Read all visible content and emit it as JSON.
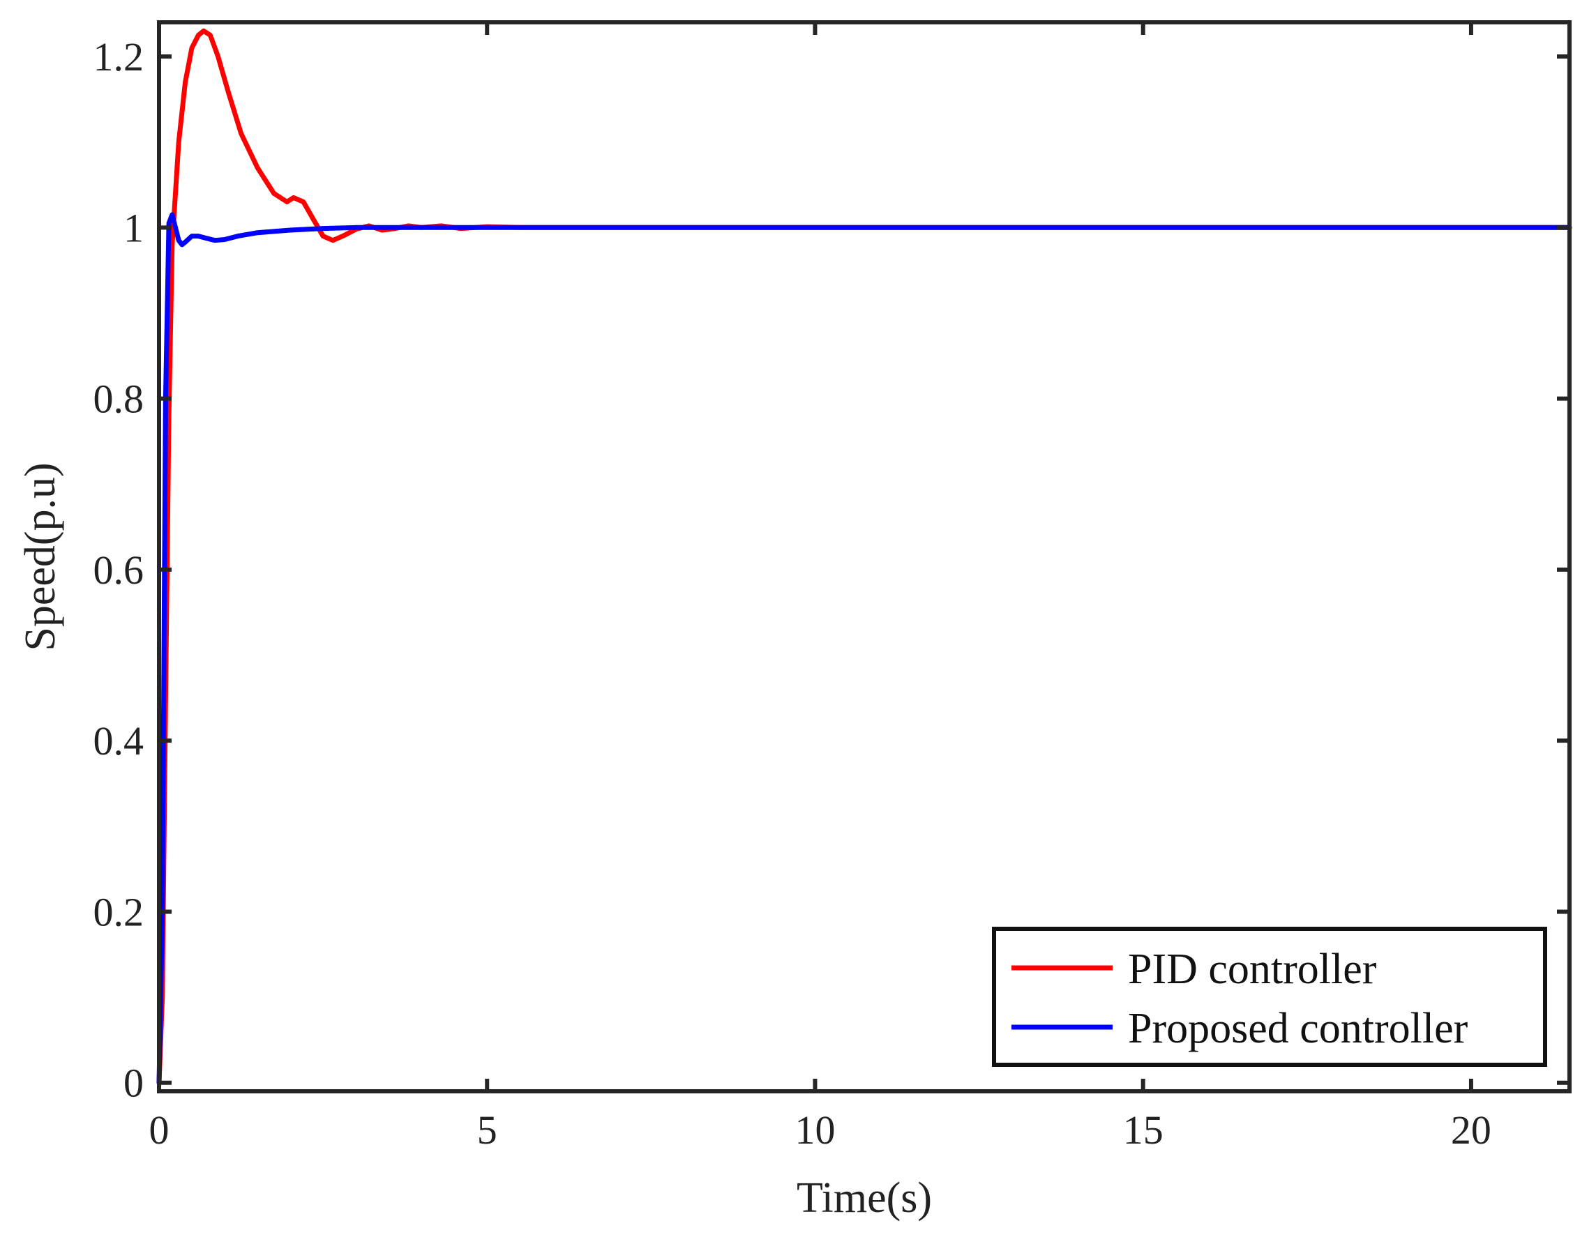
{
  "chart_data": {
    "type": "line",
    "xlabel": "Time(s)",
    "ylabel": "Speed(p.u)",
    "xlim": [
      0,
      21.5
    ],
    "ylim": [
      -0.01,
      1.24
    ],
    "xticks": [
      0,
      5,
      10,
      15,
      20
    ],
    "xtick_labels": [
      "0",
      "5",
      "10",
      "15",
      "20"
    ],
    "yticks": [
      0,
      0.2,
      0.4,
      0.6,
      0.8,
      1,
      1.2
    ],
    "ytick_labels": [
      "0",
      "0.2",
      "0.4",
      "0.6",
      "0.8",
      "1",
      "1.2"
    ],
    "grid": false,
    "legend": {
      "position": "bottom-right"
    },
    "series": [
      {
        "name": "PID controller",
        "color": "#ff0000",
        "x": [
          0,
          0.05,
          0.1,
          0.15,
          0.2,
          0.3,
          0.4,
          0.5,
          0.6,
          0.68,
          0.78,
          0.9,
          1.05,
          1.25,
          1.5,
          1.75,
          1.95,
          2.05,
          2.2,
          2.35,
          2.5,
          2.65,
          2.8,
          3.0,
          3.2,
          3.4,
          3.6,
          3.8,
          4.0,
          4.3,
          4.6,
          5.0,
          5.5,
          6.0,
          7.0,
          8.0,
          10.0,
          15.0,
          21.5
        ],
        "y": [
          0,
          0.1,
          0.45,
          0.78,
          0.98,
          1.1,
          1.17,
          1.21,
          1.225,
          1.23,
          1.225,
          1.2,
          1.16,
          1.11,
          1.07,
          1.04,
          1.03,
          1.035,
          1.03,
          1.01,
          0.99,
          0.985,
          0.99,
          0.998,
          1.002,
          0.997,
          0.999,
          1.002,
          1.0,
          1.002,
          0.999,
          1.001,
          1.0,
          1.0,
          1.0,
          1.0,
          1.0,
          1.0,
          1.0
        ]
      },
      {
        "name": "Proposed controller",
        "color": "#0000ff",
        "x": [
          0,
          0.05,
          0.1,
          0.15,
          0.2,
          0.25,
          0.3,
          0.35,
          0.4,
          0.5,
          0.6,
          0.7,
          0.85,
          1.0,
          1.2,
          1.5,
          2.0,
          2.5,
          3.0,
          3.5,
          4.0,
          5.0,
          6.0,
          8.0,
          10.0,
          15.0,
          21.5
        ],
        "y": [
          0,
          0.2,
          0.8,
          1.005,
          1.015,
          1.0,
          0.985,
          0.98,
          0.983,
          0.99,
          0.99,
          0.988,
          0.985,
          0.986,
          0.99,
          0.994,
          0.997,
          0.999,
          1.0,
          1.0,
          1.0,
          1.0,
          1.0,
          1.0,
          1.0,
          1.0,
          1.0
        ]
      }
    ]
  }
}
